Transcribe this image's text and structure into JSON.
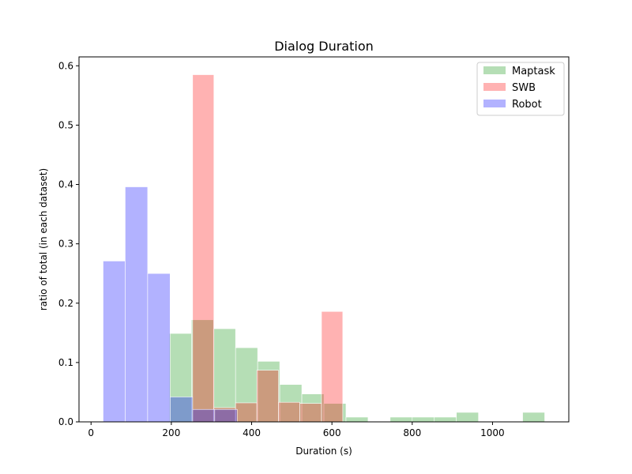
{
  "chart_data": {
    "type": "bar",
    "title": "Dialog Duration",
    "xlabel": "Duration (s)",
    "ylabel": "ratio of total (in each dataset)",
    "xlim": [
      -30,
      1190
    ],
    "ylim": [
      0,
      0.615
    ],
    "xticks": [
      0,
      200,
      400,
      600,
      800,
      1000
    ],
    "yticks": [
      0.0,
      0.1,
      0.2,
      0.3,
      0.4,
      0.5,
      0.6
    ],
    "legend_position": "top-right",
    "grid": false,
    "series": [
      {
        "name": "Maptask",
        "color": "#2ca02c",
        "opacity": 0.35,
        "bins": [
          {
            "x0": 195,
            "x1": 250,
            "value": 0.149
          },
          {
            "x0": 250,
            "x1": 305,
            "value": 0.172
          },
          {
            "x0": 305,
            "x1": 360,
            "value": 0.157
          },
          {
            "x0": 360,
            "x1": 415,
            "value": 0.125
          },
          {
            "x0": 415,
            "x1": 470,
            "value": 0.102
          },
          {
            "x0": 470,
            "x1": 525,
            "value": 0.063
          },
          {
            "x0": 525,
            "x1": 580,
            "value": 0.047
          },
          {
            "x0": 580,
            "x1": 635,
            "value": 0.031
          },
          {
            "x0": 635,
            "x1": 690,
            "value": 0.008
          },
          {
            "x0": 745,
            "x1": 800,
            "value": 0.008
          },
          {
            "x0": 800,
            "x1": 855,
            "value": 0.008
          },
          {
            "x0": 855,
            "x1": 910,
            "value": 0.008
          },
          {
            "x0": 910,
            "x1": 965,
            "value": 0.016
          },
          {
            "x0": 1075,
            "x1": 1130,
            "value": 0.016
          }
        ]
      },
      {
        "name": "SWB",
        "color": "#ff0000",
        "opacity": 0.3,
        "bins": [
          {
            "x0": 253,
            "x1": 306,
            "value": 0.585
          },
          {
            "x0": 306,
            "x1": 360,
            "value": 0.024
          },
          {
            "x0": 360,
            "x1": 413,
            "value": 0.032
          },
          {
            "x0": 413,
            "x1": 467,
            "value": 0.087
          },
          {
            "x0": 467,
            "x1": 520,
            "value": 0.033
          },
          {
            "x0": 520,
            "x1": 574,
            "value": 0.031
          },
          {
            "x0": 574,
            "x1": 627,
            "value": 0.186
          }
        ]
      },
      {
        "name": "Robot",
        "color": "#0000ff",
        "opacity": 0.3,
        "bins": [
          {
            "x0": 30,
            "x1": 85,
            "value": 0.271
          },
          {
            "x0": 85,
            "x1": 141,
            "value": 0.396
          },
          {
            "x0": 141,
            "x1": 197,
            "value": 0.25
          },
          {
            "x0": 197,
            "x1": 253,
            "value": 0.042
          },
          {
            "x0": 253,
            "x1": 308,
            "value": 0.021
          },
          {
            "x0": 308,
            "x1": 364,
            "value": 0.021
          }
        ]
      }
    ]
  }
}
